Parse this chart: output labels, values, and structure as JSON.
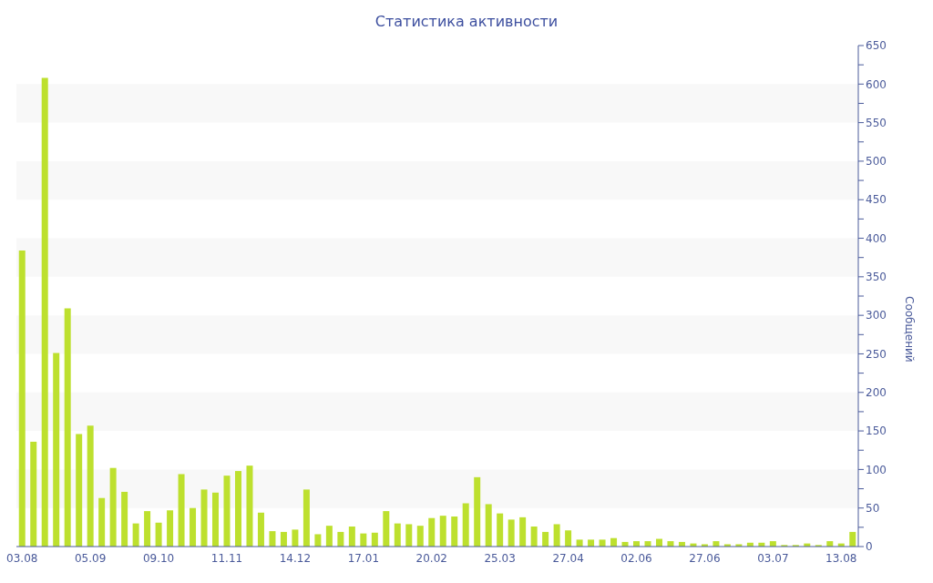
{
  "chart_data": {
    "type": "bar",
    "title": "Статистика активности",
    "ylabel": "Сообщений",
    "categories": [
      "03.08",
      null,
      null,
      null,
      null,
      null,
      "05.09",
      null,
      null,
      null,
      null,
      null,
      "09.10",
      null,
      null,
      null,
      null,
      null,
      "11.11",
      null,
      null,
      null,
      null,
      null,
      "14.12",
      null,
      null,
      null,
      null,
      null,
      "17.01",
      null,
      null,
      null,
      null,
      null,
      "20.02",
      null,
      null,
      null,
      null,
      null,
      "25.03",
      null,
      null,
      null,
      null,
      null,
      "27.04",
      null,
      null,
      null,
      null,
      null,
      "02.06",
      null,
      null,
      null,
      null,
      null,
      "27.06",
      null,
      null,
      null,
      null,
      null,
      "03.07",
      null,
      null,
      null,
      null,
      null,
      "13.08",
      null
    ],
    "values": [
      384,
      136,
      608,
      251,
      309,
      146,
      157,
      63,
      102,
      71,
      30,
      46,
      31,
      47,
      94,
      50,
      74,
      70,
      92,
      98,
      105,
      44,
      20,
      19,
      22,
      74,
      16,
      27,
      19,
      26,
      17,
      18,
      46,
      30,
      29,
      27,
      37,
      40,
      39,
      56,
      90,
      55,
      43,
      35,
      38,
      26,
      19,
      29,
      21,
      9,
      9,
      9,
      11,
      6,
      7,
      7,
      10,
      7,
      6,
      4,
      3,
      7,
      3,
      3,
      5,
      5,
      7,
      2,
      2,
      4,
      2,
      7,
      4,
      19
    ],
    "color": "#bde02e",
    "ylim": [
      0,
      650
    ],
    "yticks": [
      0,
      {
        "value": 25,
        "label": null
      },
      50,
      {
        "value": 75,
        "label": null
      },
      100,
      {
        "value": 125,
        "label": null
      },
      150,
      {
        "value": 175,
        "label": null
      },
      200,
      {
        "value": 225,
        "label": null
      },
      250,
      {
        "value": 275,
        "label": null
      },
      300,
      {
        "value": 325,
        "label": null
      },
      350,
      {
        "value": 375,
        "label": null
      },
      400,
      {
        "value": 425,
        "label": null
      },
      450,
      {
        "value": 475,
        "label": null
      },
      500,
      {
        "value": 525,
        "label": null
      },
      550,
      {
        "value": 575,
        "label": null
      },
      600,
      {
        "value": 625,
        "label": null
      },
      650
    ],
    "bands": [
      {
        "axis": "y",
        "from": 50,
        "to": 100,
        "color": "#f8f8f8"
      },
      {
        "axis": "y",
        "from": 150,
        "to": 200,
        "color": "#f8f8f8"
      },
      {
        "axis": "y",
        "from": 250,
        "to": 300,
        "color": "#f8f8f8"
      },
      {
        "axis": "y",
        "from": 350,
        "to": 400,
        "color": "#f8f8f8"
      },
      {
        "axis": "y",
        "from": 450,
        "to": 500,
        "color": "#f8f8f8"
      },
      {
        "axis": "y",
        "from": 550,
        "to": 600,
        "color": "#f8f8f8"
      }
    ]
  }
}
